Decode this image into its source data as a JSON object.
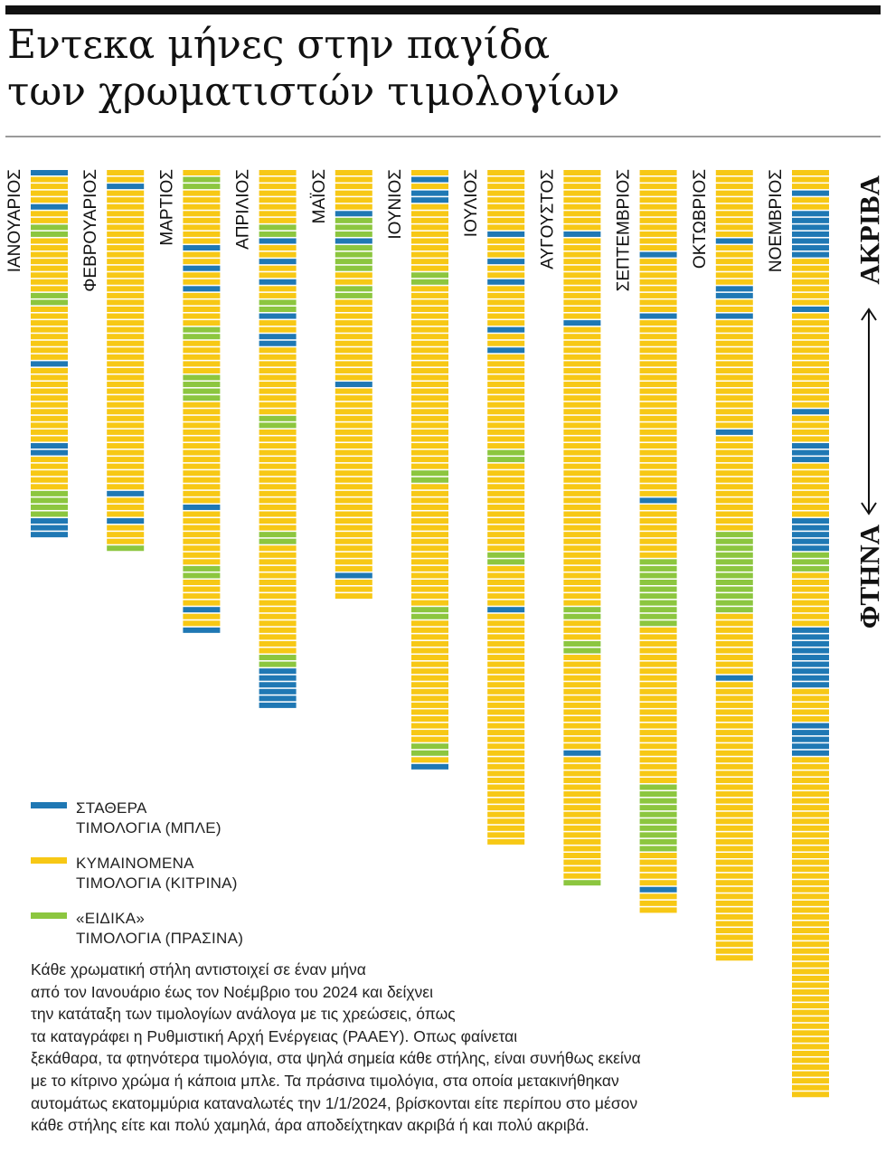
{
  "title": {
    "line1": "Εντεκα μήνες στην παγίδα",
    "line2": "των χρωματιστών τιμολογίων"
  },
  "scale": {
    "top_label": "ΑΚΡΙΒΑ",
    "bottom_label": "ΦΤΗΝΑ"
  },
  "legend": [
    {
      "line1": "ΣΤΑΘΕΡΑ",
      "line2": "ΤΙΜΟΛΟΓΙΑ (ΜΠΛΕ)",
      "color": "#1f78b4"
    },
    {
      "line1": "ΚΥΜΑΙΝΟΜΕΝΑ",
      "line2": "ΤΙΜΟΛΟΓΙΑ (ΚΙΤΡΙΝΑ)",
      "color": "#f7c815"
    },
    {
      "line1": "«ΕΙΔΙΚΑ»",
      "line2": "ΤΙΜΟΛΟΓΙΑ (ΠΡΑΣΙΝΑ)",
      "color": "#8cc63f"
    }
  ],
  "note": [
    "Κάθε χρωματική στήλη αντιστοιχεί σε έναν μήνα",
    "από τον Ιανουάριο έως τον Νοέμβριο του 2024 και δείχνει",
    "την κατάταξη των τιμολογίων ανάλογα με τις χρεώσεις, όπως",
    "τα καταγράφει η Ρυθμιστική Αρχή Ενέργειας (ΡΑΑΕΥ). Οπως φαίνεται",
    "ξεκάθαρα, τα φτηνότερα τιμολόγια, στα ψηλά σημεία κάθε στήλης, είναι συνήθως εκείνα",
    "με το κίτρινο χρώμα ή κάποια μπλε. Τα πράσινα τιμολόγια, στα οποία μετακινήθηκαν",
    "αυτομάτως εκατομμύρια καταναλωτές την 1/1/2024, βρίσκονται είτε περίπου στο μέσον",
    "κάθε στήλης είτε και πολύ χαμηλά, άρα αποδείχτηκαν ακριβά ή και πολύ ακριβά."
  ],
  "chart_data": {
    "type": "table",
    "description_key": "Each column = one month; each stripe = one tariff, ordered from cheapest (top) to most expensive (bottom). b = blue (fixed), y = yellow (floating), g = green (special).",
    "colors": {
      "b": "#1f78b4",
      "y": "#f7c815",
      "g": "#8cc63f"
    },
    "months": [
      {
        "name": "ΙΑΝΟΥΑΡΙΟΣ",
        "tariffs": "byyyybyyggyyyyyyyyggyyyyyyyybyyyyyyyyyyybbyyyyyggggbbb"
      },
      {
        "name": "ΦΕΒΡΟΥΑΡΙΟΣ",
        "tariffs": "yybyyyyyyyyyyyyyyyyyyyyyyyyyyyyyyyyyyyyyyyyyyyybyyybyyyg"
      },
      {
        "name": "ΜΑΡΤΙΟΣ",
        "tariffs": "yggyyyyyyyybyybyybyyyyyggyyyyyggggyyyyyyyyyyyyyyybyyyyyyyyggyyyybyyb"
      },
      {
        "name": "ΑΠΡΙΛΙΟΣ",
        "tariffs": "yyyyyyyyggbyybyybyyggbyybbyyyyyyyyyyggyyyyyyyyyyyyyyyggyyyyyyyyyyyyyyyyggbbbbbb"
      },
      {
        "name": "ΜΑΪΟΣ",
        "tariffs": "yyyyyybgggbggggyyggyyyyyyyyyyyybyyyyyyyyyyyyyyyyyyyyyyyyyyybyyy"
      },
      {
        "name": "ΙΟΥΝΙΟΣ",
        "tariffs": "ybybbyyyyyyyyyyggyyyyyyyyyyyyyyyyyyyyyyyyyyyggyyyyyyyyyyyyyyyyyyggyyyyyyyyyyyyyyyyyyggyb"
      },
      {
        "name": "ΙΟΥΛΙΟΣ",
        "tariffs": "yyyyyyyyybyyybyybyyyyyybyybyyyyyyyyyyyyyyggyyyyyyyyyyyyyggyyyyyybyyyyyyyyyyyyyyyyyyyyyyyyyyyyyyyyyy"
      },
      {
        "name": "ΑΥΓΟΥΣΤΟΣ",
        "tariffs": "yyyyyyyyybyyyyyyyyyyyybyyyyyyyyyyyyyyyyyyyyyyyyyyyyyyyyyyyyyyyyyggyyyggyyyyyyyyyyyyyybyyyyyyyyyyyyyyyyyyg"
      },
      {
        "name": "ΣΕΠΤΕΜΒΡΙΟΣ",
        "tariffs": "yyyyyyyyyyyybyyyyyyyybyyyyyyyyyyyyyyyyyyyyyyyyyybyyyyyyyyggggggggggyyyyyyyyyyyyyyyyyyyyyyyggggggggggyyyyybyyy"
      },
      {
        "name": "ΟΚΤΩΒΡΙΟΣ",
        "tariffs": "yyyyyyyyyybyyyyyybbyybyyyyyyyyyyyyyyyybyyyyyyyyyyyyyyggggggggggggyyyyyyyyybyyyyyyyyyyyyyyyyyyyyyyyyyyyyyyyyyyyyyyyyy"
      },
      {
        "name": "ΝΟΕΜΒΡΙΟΣ",
        "tariffs": "yyybyybbbbbbbyyyyyyybyyyyyyyyyyyyyybyyyybbbyyyyyyyybbbbbgggyyyyyyyybbbbbbbbbyyyyybbbbbyyyyyyyyyyyyyyyyyyyyyyyyyyyyyyyyyyyyyyyyyyyyyyyyyy"
      }
    ]
  }
}
